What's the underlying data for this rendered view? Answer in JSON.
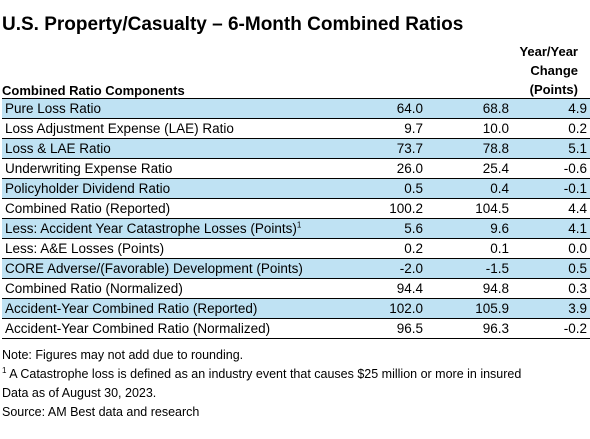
{
  "title": "U.S. Property/Casualty – 6-Month Combined Ratios",
  "header": {
    "components_label": "Combined Ratio Components",
    "change_line1": "Year/Year",
    "change_line2": "Change",
    "change_line3": "(Points)"
  },
  "rows": [
    {
      "label": "Pure Loss Ratio",
      "a": "64.0",
      "b": "68.8",
      "change": "4.9"
    },
    {
      "label": "Loss Adjustment Expense (LAE) Ratio",
      "a": "9.7",
      "b": "10.0",
      "change": "0.2"
    },
    {
      "label": "Loss & LAE Ratio",
      "a": "73.7",
      "b": "78.8",
      "change": "5.1"
    },
    {
      "label": "Underwriting Expense Ratio",
      "a": "26.0",
      "b": "25.4",
      "change": "-0.6"
    },
    {
      "label": "Policyholder Dividend Ratio",
      "a": "0.5",
      "b": "0.4",
      "change": "-0.1"
    },
    {
      "label": "Combined Ratio (Reported)",
      "a": "100.2",
      "b": "104.5",
      "change": "4.4"
    },
    {
      "label": "Less: Accident Year Catastrophe Losses (Points)",
      "sup": "1",
      "a": "5.6",
      "b": "9.6",
      "change": "4.1"
    },
    {
      "label": "Less: A&E Losses (Points)",
      "a": "0.2",
      "b": "0.1",
      "change": "0.0"
    },
    {
      "label": "CORE Adverse/(Favorable) Development (Points)",
      "a": "-2.0",
      "b": "-1.5",
      "change": "0.5"
    },
    {
      "label": "Combined Ratio (Normalized)",
      "a": "94.4",
      "b": "94.8",
      "change": "0.3"
    },
    {
      "label": "Accident-Year Combined Ratio (Reported)",
      "a": "102.0",
      "b": "105.9",
      "change": "3.9"
    },
    {
      "label": "Accident-Year Combined Ratio (Normalized)",
      "a": "96.5",
      "b": "96.3",
      "change": "-0.2"
    }
  ],
  "notes": {
    "rounding": "Note: Figures may not add due to rounding.",
    "footnote_marker": "1",
    "footnote": " A Catastrophe loss is defined as an industry event that causes $25 million or more in insured",
    "footnote_cont": "Data as of August 30, 2023.",
    "source": "Source: AM Best data and research"
  },
  "colors": {
    "row_shade": "#bfe2f3",
    "rule": "#000000"
  }
}
